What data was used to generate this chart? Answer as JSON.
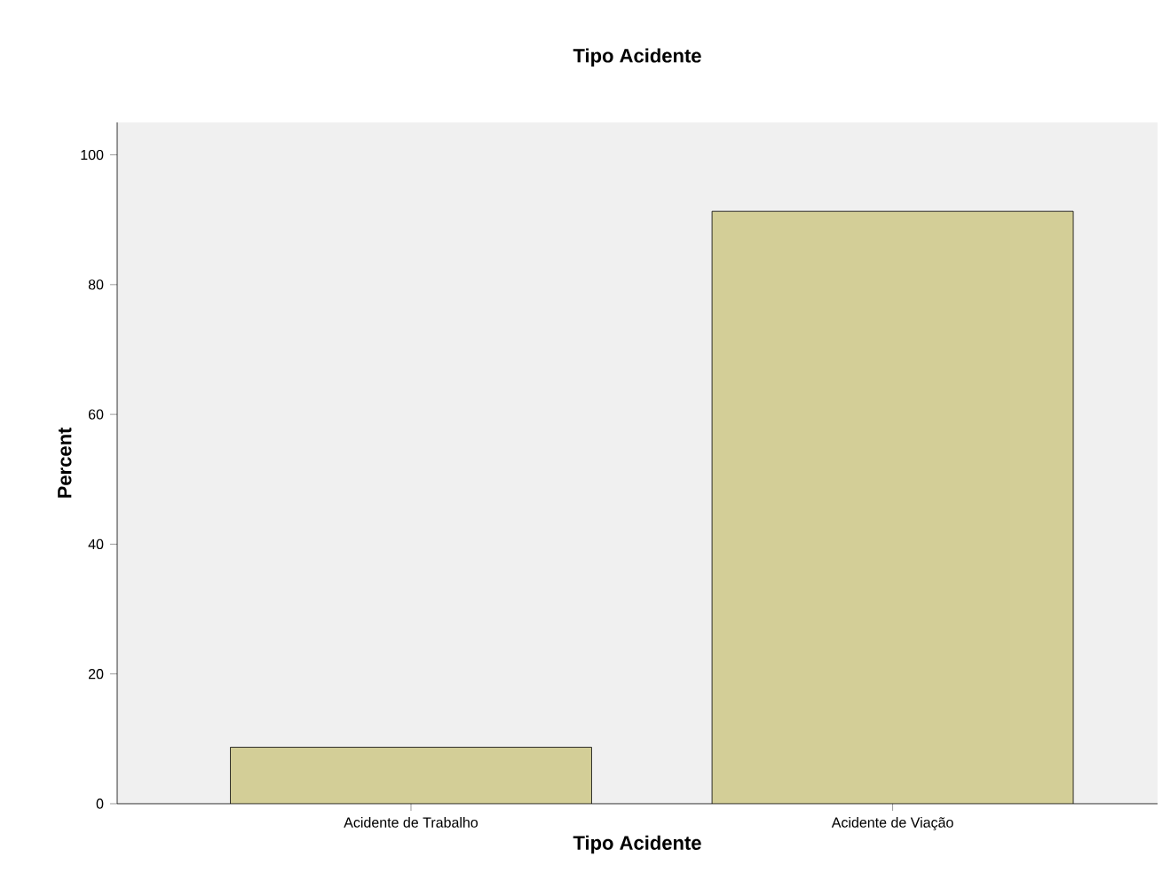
{
  "chart_data": {
    "type": "bar",
    "title": "Tipo Acidente",
    "xlabel": "Tipo Acidente",
    "ylabel": "Percent",
    "categories": [
      "Acidente de Trabalho",
      "Acidente de Viação"
    ],
    "values": [
      8.7,
      91.3
    ],
    "color": "#d3ce97",
    "ylim": [
      0,
      105
    ],
    "yticks": [
      0,
      20,
      40,
      60,
      80,
      100
    ],
    "grid": false
  }
}
